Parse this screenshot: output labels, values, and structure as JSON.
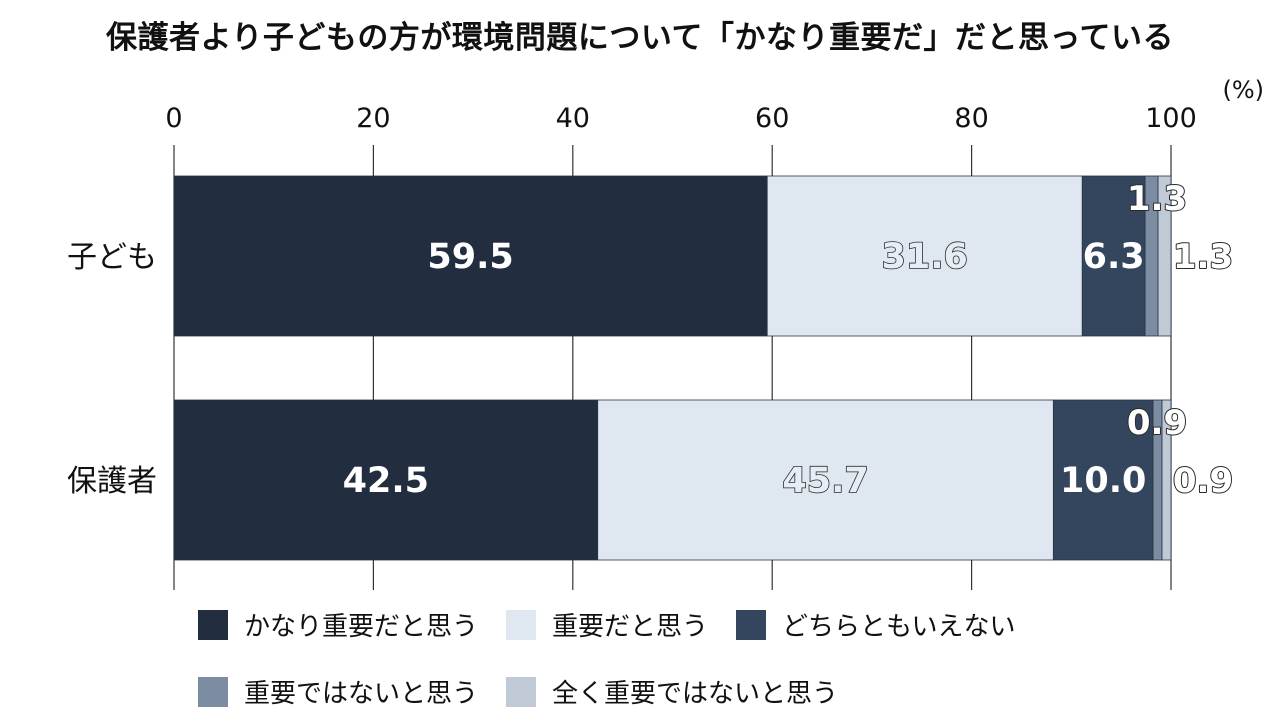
{
  "chart_data": {
    "type": "bar",
    "orientation": "horizontal",
    "stacked": true,
    "title": "保護者より子どもの方が環境問題について「かなり重要だ」だと思っている",
    "unit_label": "(%)",
    "xlim": [
      0,
      100
    ],
    "x_ticks": [
      "0",
      "20",
      "40",
      "60",
      "80",
      "100"
    ],
    "grid": true,
    "legend_position": "bottom",
    "categories": [
      "子ども",
      "保護者"
    ],
    "series": [
      {
        "name": "かなり重要だと思う",
        "color": "#222d3f",
        "values": [
          59.5,
          42.5
        ],
        "labels": [
          "59.5",
          "42.5"
        ]
      },
      {
        "name": "重要だと思う",
        "color": "#dfe8f1",
        "values": [
          31.6,
          45.7
        ],
        "labels": [
          "31.6",
          "45.7"
        ]
      },
      {
        "name": "どちらともいえない",
        "color": "#34465e",
        "values": [
          6.3,
          10.0
        ],
        "labels": [
          "6.3",
          "10.0"
        ]
      },
      {
        "name": "重要ではないと思う",
        "color": "#7b8ca3",
        "values": [
          1.3,
          0.9
        ],
        "labels": [
          "1.3",
          "0.9"
        ]
      },
      {
        "name": "全く重要ではないと思う",
        "color": "#bfcad6",
        "values": [
          1.3,
          0.9
        ],
        "labels": [
          "1.3",
          "0.9"
        ]
      }
    ]
  }
}
